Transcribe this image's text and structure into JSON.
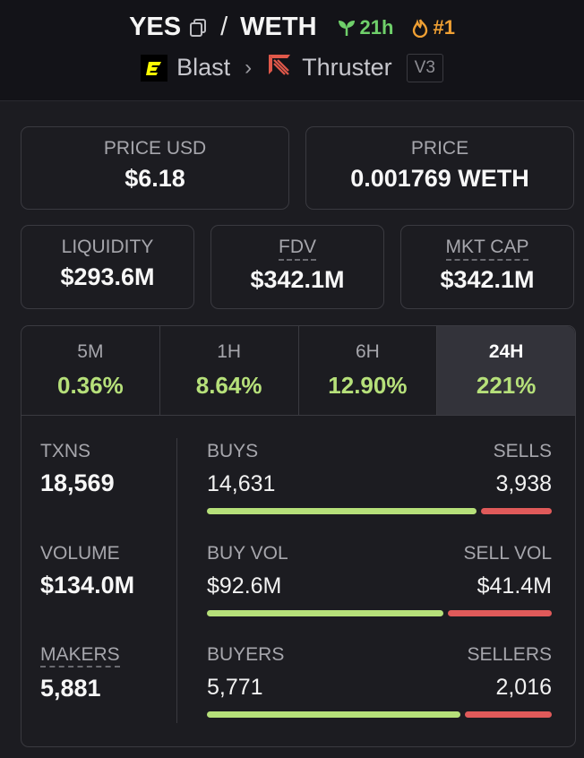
{
  "header": {
    "base_token": "YES",
    "quote_token": "WETH",
    "separator": "/",
    "age": "21h",
    "rank": "#1",
    "chain": "Blast",
    "dex": "Thruster",
    "dex_version": "V3",
    "colors": {
      "age": "#6fcf6a",
      "rank": "#f0a033",
      "dex": "#e0584a"
    }
  },
  "prices": {
    "usd": {
      "label": "PRICE USD",
      "value": "$6.18"
    },
    "native": {
      "label": "PRICE",
      "value": "0.001769 WETH"
    }
  },
  "metrics": {
    "liquidity": {
      "label": "LIQUIDITY",
      "value": "$293.6M"
    },
    "fdv": {
      "label": "FDV",
      "value": "$342.1M"
    },
    "mkt_cap": {
      "label": "MKT CAP",
      "value": "$342.1M"
    }
  },
  "tabs": [
    {
      "label": "5M",
      "change": "0.36%"
    },
    {
      "label": "1H",
      "change": "8.64%"
    },
    {
      "label": "6H",
      "change": "12.90%"
    },
    {
      "label": "24H",
      "change": "221%",
      "selected": true
    }
  ],
  "summary": {
    "txns": {
      "label": "TXNS",
      "value": "18,569"
    },
    "volume": {
      "label": "VOLUME",
      "value": "$134.0M"
    },
    "makers": {
      "label": "MAKERS",
      "value": "5,881"
    }
  },
  "breakdown": {
    "buys": {
      "label": "BUYS",
      "value": "14,631",
      "share": 0.788
    },
    "sells": {
      "label": "SELLS",
      "value": "3,938",
      "share": 0.212
    },
    "buy_vol": {
      "label": "BUY VOL",
      "value": "$92.6M",
      "share": 0.691
    },
    "sell_vol": {
      "label": "SELL VOL",
      "value": "$41.4M",
      "share": 0.309
    },
    "buyers": {
      "label": "BUYERS",
      "value": "5,771",
      "share": 0.741
    },
    "sellers": {
      "label": "SELLERS",
      "value": "2,016",
      "share": 0.259
    }
  },
  "colors": {
    "positive": "#b6e07a",
    "negative": "#e05a5a",
    "accent": "#f0a033"
  }
}
